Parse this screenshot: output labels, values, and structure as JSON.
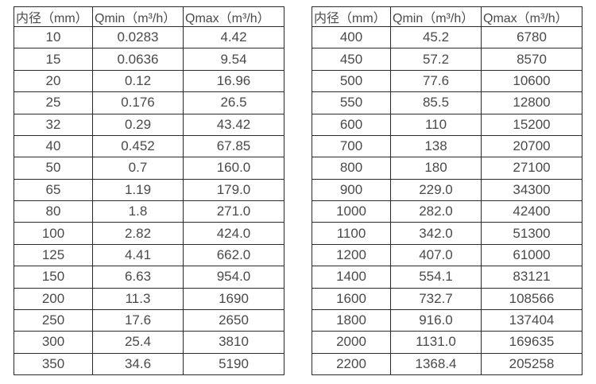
{
  "columns": {
    "diameter": "内径（mm）",
    "qmin": "Qmin（m³/h）",
    "qmax": "Qmax（m³/h）"
  },
  "border_color": "#2b2b2b",
  "text_color": "#4a4a4a",
  "tables": {
    "left": {
      "rows": [
        [
          "10",
          "0.0283",
          "4.42"
        ],
        [
          "15",
          "0.0636",
          "9.54"
        ],
        [
          "20",
          "0.12",
          "16.96"
        ],
        [
          "25",
          "0.176",
          "26.5"
        ],
        [
          "32",
          "0.29",
          "43.42"
        ],
        [
          "40",
          "0.452",
          "67.85"
        ],
        [
          "50",
          "0.7",
          "160.0"
        ],
        [
          "65",
          "1.19",
          "179.0"
        ],
        [
          "80",
          "1.8",
          "271.0"
        ],
        [
          "100",
          "2.82",
          "424.0"
        ],
        [
          "125",
          "4.41",
          "662.0"
        ],
        [
          "150",
          "6.63",
          "954.0"
        ],
        [
          "200",
          "11.3",
          "1690"
        ],
        [
          "250",
          "17.6",
          "2650"
        ],
        [
          "300",
          "25.4",
          "3810"
        ],
        [
          "350",
          "34.6",
          "5190"
        ]
      ]
    },
    "right": {
      "rows": [
        [
          "400",
          "45.2",
          "6780"
        ],
        [
          "450",
          "57.2",
          "8570"
        ],
        [
          "500",
          "77.6",
          "10600"
        ],
        [
          "550",
          "85.5",
          "12800"
        ],
        [
          "600",
          "110",
          "15200"
        ],
        [
          "700",
          "138",
          "20700"
        ],
        [
          "800",
          "180",
          "27100"
        ],
        [
          "900",
          "229.0",
          "34300"
        ],
        [
          "1000",
          "282.0",
          "42400"
        ],
        [
          "1100",
          "342.0",
          "51300"
        ],
        [
          "1200",
          "407.0",
          "61000"
        ],
        [
          "1400",
          "554.1",
          "83121"
        ],
        [
          "1600",
          "732.7",
          "108566"
        ],
        [
          "1800",
          "916.0",
          "137404"
        ],
        [
          "2000",
          "1131.0",
          "169635"
        ],
        [
          "2200",
          "1368.4",
          "205258"
        ]
      ]
    }
  }
}
